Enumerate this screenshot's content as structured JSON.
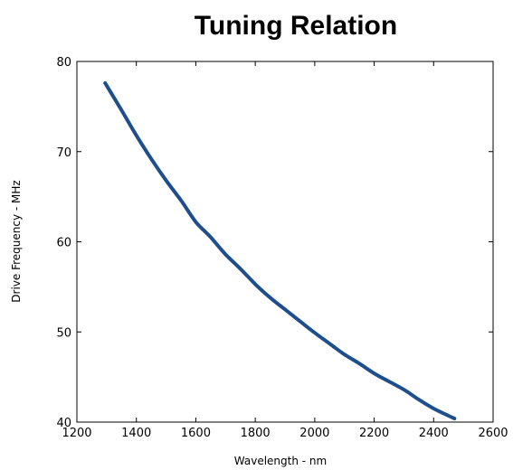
{
  "chart_data": {
    "type": "line",
    "title": "Tuning Relation",
    "xlabel": "Wavelength - nm",
    "ylabel": "Drive Frequency - MHz",
    "xlim": [
      1200,
      2600
    ],
    "ylim": [
      40,
      80
    ],
    "xticks": [
      "1200",
      "1400",
      "1600",
      "1800",
      "2000",
      "2200",
      "2400",
      "2600"
    ],
    "yticks": [
      "40",
      "50",
      "60",
      "70",
      "80"
    ],
    "grid": false,
    "legend": "none",
    "series": [
      {
        "color": "#1f4e8c",
        "x": [
          1295,
          1350,
          1400,
          1450,
          1500,
          1550,
          1600,
          1650,
          1700,
          1750,
          1800,
          1850,
          1900,
          1950,
          2000,
          2050,
          2100,
          2150,
          2200,
          2250,
          2300,
          2350,
          2400,
          2450,
          2470
        ],
        "y": [
          77.6,
          74.6,
          71.8,
          69.2,
          66.8,
          64.6,
          62.2,
          60.5,
          58.6,
          57.0,
          55.3,
          53.8,
          52.5,
          51.2,
          49.9,
          48.7,
          47.5,
          46.5,
          45.4,
          44.5,
          43.6,
          42.5,
          41.5,
          40.7,
          40.4
        ]
      }
    ]
  }
}
